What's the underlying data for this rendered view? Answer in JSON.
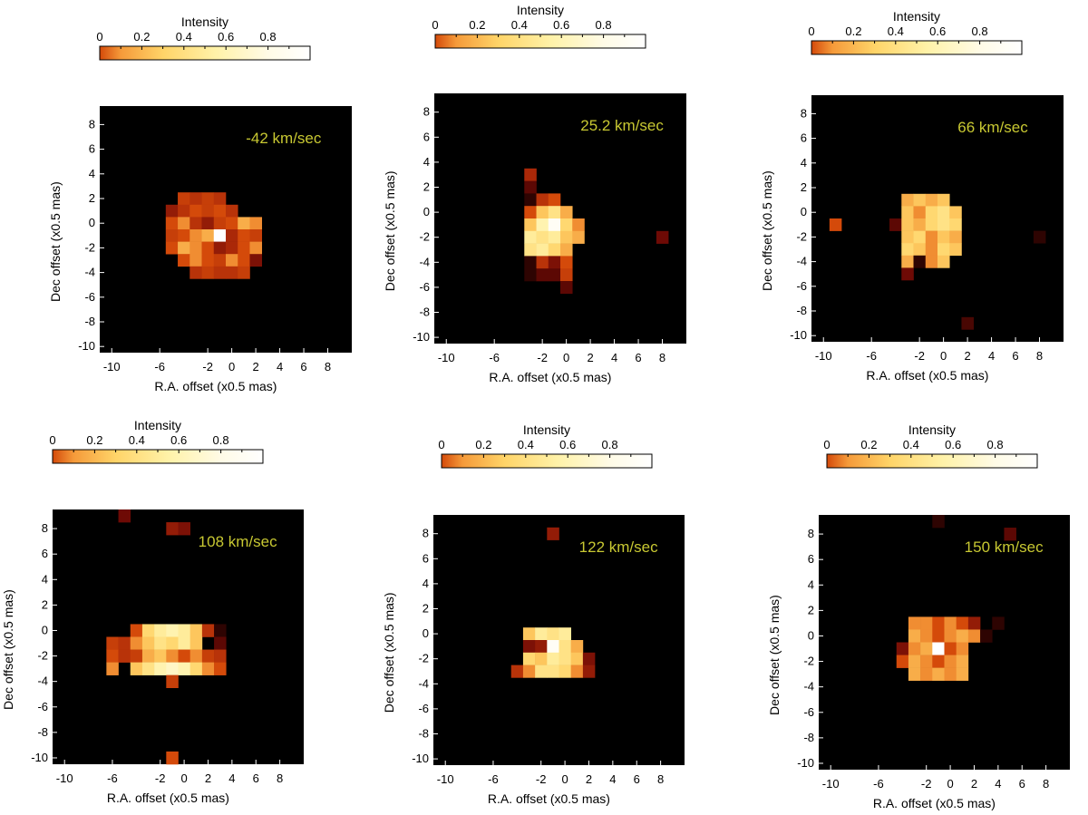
{
  "chart_data": [
    {
      "type": "heatmap",
      "velocity_label": "-42 km/sec",
      "colorbar_title": "Intensity",
      "colorbar_ticks": [
        "0",
        "0.2",
        "0.4",
        "0.6",
        "0.8"
      ],
      "xlabel": "R.A. offset (x0.5 mas)",
      "ylabel": "Dec offset (x0.5 mas)",
      "xticks": [
        "-10",
        "-6",
        "-2",
        "0",
        "2",
        "4",
        "6",
        "8"
      ],
      "xtick_values": [
        -10,
        -6,
        -2,
        0,
        2,
        4,
        6,
        8
      ],
      "yticks": [
        "8",
        "6",
        "4",
        "2",
        "0",
        "-2",
        "-4",
        "-6",
        "-8",
        "-10"
      ],
      "ytick_values": [
        8,
        6,
        4,
        2,
        0,
        -2,
        -4,
        -6,
        -8,
        -10
      ],
      "xlim": [
        -11,
        10
      ],
      "ylim": [
        -10.5,
        9.5
      ],
      "cells": [
        [
          -4,
          2,
          0.35
        ],
        [
          -3,
          2,
          0.3
        ],
        [
          -2,
          2,
          0.35
        ],
        [
          -1,
          2,
          0.3
        ],
        [
          -5,
          1,
          0.2
        ],
        [
          -4,
          1,
          0.3
        ],
        [
          -3,
          1,
          0.4
        ],
        [
          -2,
          1,
          0.35
        ],
        [
          -1,
          1,
          0.4
        ],
        [
          0,
          1,
          0.3
        ],
        [
          -5,
          0,
          0.4
        ],
        [
          -4,
          0,
          0.45
        ],
        [
          -3,
          0,
          0.3
        ],
        [
          -2,
          0,
          0.2
        ],
        [
          -1,
          0,
          0.35
        ],
        [
          0,
          0,
          0.4
        ],
        [
          1,
          0,
          0.5
        ],
        [
          2,
          0,
          0.45
        ],
        [
          -5,
          -1,
          0.35
        ],
        [
          -4,
          -1,
          0.4
        ],
        [
          -3,
          -1,
          0.45
        ],
        [
          -2,
          -1,
          0.5
        ],
        [
          -1,
          -1,
          1.0
        ],
        [
          0,
          -1,
          0.25
        ],
        [
          1,
          -1,
          0.4
        ],
        [
          2,
          -1,
          0.35
        ],
        [
          -5,
          -2,
          0.4
        ],
        [
          -4,
          -2,
          0.5
        ],
        [
          -3,
          -2,
          0.45
        ],
        [
          -2,
          -2,
          0.4
        ],
        [
          -1,
          -2,
          0.2
        ],
        [
          0,
          -2,
          0.25
        ],
        [
          1,
          -2,
          0.4
        ],
        [
          2,
          -2,
          0.45
        ],
        [
          -4,
          -3,
          0.4
        ],
        [
          -3,
          -3,
          0.45
        ],
        [
          -2,
          -3,
          0.4
        ],
        [
          -1,
          -3,
          0.35
        ],
        [
          0,
          -3,
          0.45
        ],
        [
          1,
          -3,
          0.4
        ],
        [
          2,
          -3,
          0.15
        ],
        [
          -3,
          -4,
          0.3
        ],
        [
          -2,
          -4,
          0.35
        ],
        [
          -1,
          -4,
          0.3
        ],
        [
          0,
          -4,
          0.3
        ],
        [
          1,
          -4,
          0.35
        ]
      ]
    },
    {
      "type": "heatmap",
      "velocity_label": "25.2 km/sec",
      "colorbar_title": "Intensity",
      "colorbar_ticks": [
        "0",
        "0.2",
        "0.4",
        "0.6",
        "0.8"
      ],
      "xlabel": "R.A. offset (x0.5 mas)",
      "ylabel": "Dec offset (x0.5 mas)",
      "xticks": [
        "-10",
        "-6",
        "-2",
        "0",
        "2",
        "4",
        "6",
        "8"
      ],
      "xtick_values": [
        -10,
        -6,
        -2,
        0,
        2,
        4,
        6,
        8
      ],
      "yticks": [
        "8",
        "6",
        "4",
        "2",
        "0",
        "-2",
        "-4",
        "-6",
        "-8",
        "-10"
      ],
      "yticks_note": "",
      "ytick_values": [
        8,
        6,
        4,
        2,
        0,
        -2,
        -4,
        -6,
        -8,
        -10
      ],
      "xlim": [
        -11,
        10
      ],
      "ylim": [
        -10.5,
        9.5
      ],
      "cells": [
        [
          -3,
          3,
          0.25
        ],
        [
          -3,
          2,
          0.1
        ],
        [
          -3,
          1,
          0.05
        ],
        [
          -2,
          1,
          0.3
        ],
        [
          -1,
          1,
          0.4
        ],
        [
          -3,
          0,
          0.4
        ],
        [
          -2,
          0,
          0.55
        ],
        [
          -1,
          0,
          0.65
        ],
        [
          0,
          0,
          0.5
        ],
        [
          -3,
          -1,
          0.55
        ],
        [
          -2,
          -1,
          0.75
        ],
        [
          -1,
          -1,
          0.95
        ],
        [
          0,
          -1,
          0.6
        ],
        [
          1,
          -1,
          0.45
        ],
        [
          -3,
          -2,
          0.7
        ],
        [
          -2,
          -2,
          0.65
        ],
        [
          -1,
          -2,
          0.7
        ],
        [
          0,
          -2,
          0.55
        ],
        [
          1,
          -2,
          0.5
        ],
        [
          -3,
          -3,
          0.65
        ],
        [
          -2,
          -3,
          0.7
        ],
        [
          -1,
          -3,
          0.6
        ],
        [
          0,
          -3,
          0.5
        ],
        [
          -3,
          -4,
          0.05
        ],
        [
          -2,
          -4,
          0.3
        ],
        [
          -1,
          -4,
          0.15
        ],
        [
          0,
          -4,
          0.4
        ],
        [
          -3,
          -5,
          0.05
        ],
        [
          -2,
          -5,
          0.1
        ],
        [
          -1,
          -5,
          0.1
        ],
        [
          0,
          -5,
          0.35
        ],
        [
          0,
          -6,
          0.1
        ],
        [
          8,
          -2,
          0.12
        ]
      ]
    },
    {
      "type": "heatmap",
      "velocity_label": "66 km/sec",
      "colorbar_title": "Intensity",
      "colorbar_ticks": [
        "0",
        "0.2",
        "0.4",
        "0.6",
        "0.8"
      ],
      "xlabel": "R.A. offset (x0.5 mas)",
      "ylabel": "Dec offset (x0.5 mas)",
      "xticks": [
        "-10",
        "-6",
        "-2",
        "0",
        "2",
        "4",
        "6",
        "8"
      ],
      "xtick_values": [
        -10,
        -6,
        -2,
        0,
        2,
        4,
        6,
        8
      ],
      "yticks": [
        "8",
        "6",
        "4",
        "2",
        "0",
        "-2",
        "-4",
        "-6",
        "-8",
        "-10"
      ],
      "ytick_values": [
        8,
        6,
        4,
        2,
        0,
        -2,
        -4,
        -6,
        -8,
        -10
      ],
      "xlim": [
        -11,
        10
      ],
      "ylim": [
        -10.5,
        9.5
      ],
      "cells": [
        [
          -3,
          1,
          0.5
        ],
        [
          -2,
          1,
          0.55
        ],
        [
          -1,
          1,
          0.5
        ],
        [
          0,
          1,
          0.55
        ],
        [
          -3,
          0,
          0.55
        ],
        [
          -2,
          0,
          0.45
        ],
        [
          -1,
          0,
          0.6
        ],
        [
          0,
          0,
          0.65
        ],
        [
          1,
          0,
          0.55
        ],
        [
          -4,
          -1,
          0.1
        ],
        [
          -3,
          -1,
          0.55
        ],
        [
          -2,
          -1,
          0.5
        ],
        [
          -1,
          -1,
          0.6
        ],
        [
          0,
          -1,
          0.65
        ],
        [
          1,
          -1,
          0.6
        ],
        [
          -3,
          -2,
          0.55
        ],
        [
          -2,
          -2,
          0.6
        ],
        [
          -1,
          -2,
          0.45
        ],
        [
          0,
          -2,
          0.55
        ],
        [
          1,
          -2,
          0.5
        ],
        [
          -3,
          -3,
          0.6
        ],
        [
          -2,
          -3,
          0.55
        ],
        [
          -1,
          -3,
          0.45
        ],
        [
          0,
          -3,
          0.6
        ],
        [
          1,
          -3,
          0.55
        ],
        [
          -3,
          -4,
          0.5
        ],
        [
          -2,
          -4,
          0.05
        ],
        [
          -1,
          -4,
          0.45
        ],
        [
          0,
          -4,
          0.55
        ],
        [
          -3,
          -5,
          0.12
        ],
        [
          -9,
          -1,
          0.4
        ],
        [
          8,
          -2,
          0.05
        ],
        [
          2,
          -9,
          0.08
        ]
      ]
    },
    {
      "type": "heatmap",
      "velocity_label": "108 km/sec",
      "colorbar_title": "Intensity",
      "colorbar_ticks": [
        "0",
        "0.2",
        "0.4",
        "0.6",
        "0.8"
      ],
      "xlabel": "R.A. offset (x0.5 mas)",
      "ylabel": "Dec offset (x0.5 mas)",
      "xticks": [
        "-10",
        "-6",
        "-2",
        "0",
        "2",
        "4",
        "6",
        "8"
      ],
      "xtick_values": [
        -10,
        -6,
        -2,
        0,
        2,
        4,
        6,
        8
      ],
      "yticks": [
        "8",
        "6",
        "4",
        "2",
        "0",
        "-2",
        "-4",
        "-6",
        "-8",
        "-10"
      ],
      "ytick_values": [
        8,
        6,
        4,
        2,
        0,
        -2,
        -4,
        -6,
        -8,
        -10
      ],
      "xlim": [
        -11,
        10
      ],
      "ylim": [
        -10.5,
        9.5
      ],
      "cells": [
        [
          -5,
          9,
          0.12
        ],
        [
          -1,
          8,
          0.2
        ],
        [
          0,
          8,
          0.15
        ],
        [
          -4,
          0,
          0.4
        ],
        [
          -3,
          0,
          0.6
        ],
        [
          -2,
          0,
          0.7
        ],
        [
          -1,
          0,
          0.75
        ],
        [
          0,
          0,
          0.7
        ],
        [
          1,
          0,
          0.55
        ],
        [
          2,
          0,
          0.3
        ],
        [
          3,
          0,
          0.05
        ],
        [
          -6,
          -1,
          0.35
        ],
        [
          -5,
          -1,
          0.3
        ],
        [
          -4,
          -1,
          0.45
        ],
        [
          -3,
          -1,
          0.55
        ],
        [
          -2,
          -1,
          0.65
        ],
        [
          -1,
          -1,
          0.6
        ],
        [
          0,
          -1,
          0.7
        ],
        [
          1,
          -1,
          0.55
        ],
        [
          3,
          -1,
          0.1
        ],
        [
          -6,
          -2,
          0.4
        ],
        [
          -5,
          -2,
          0.3
        ],
        [
          -4,
          -2,
          0.35
        ],
        [
          -3,
          -2,
          0.5
        ],
        [
          -2,
          -2,
          0.55
        ],
        [
          -1,
          -2,
          0.45
        ],
        [
          0,
          -2,
          0.4
        ],
        [
          1,
          -2,
          0.45
        ],
        [
          2,
          -2,
          0.35
        ],
        [
          3,
          -2,
          0.3
        ],
        [
          -6,
          -3,
          0.45
        ],
        [
          -4,
          -3,
          0.55
        ],
        [
          -3,
          -3,
          0.65
        ],
        [
          -2,
          -3,
          0.75
        ],
        [
          -1,
          -3,
          0.8
        ],
        [
          0,
          -3,
          0.75
        ],
        [
          1,
          -3,
          0.6
        ],
        [
          2,
          -3,
          0.45
        ],
        [
          3,
          -3,
          0.4
        ],
        [
          -1,
          -4,
          0.35
        ],
        [
          -1,
          -10,
          0.4
        ]
      ]
    },
    {
      "type": "heatmap",
      "velocity_label": "122 km/sec",
      "colorbar_title": "Intensity",
      "colorbar_ticks": [
        "0",
        "0.2",
        "0.4",
        "0.6",
        "0.8"
      ],
      "xlabel": "R.A. offset (x0.5 mas)",
      "ylabel": "Dec offset (x0.5 mas)",
      "xticks": [
        "-10",
        "-6",
        "-2",
        "0",
        "2",
        "4",
        "6",
        "8"
      ],
      "xtick_values": [
        -10,
        -6,
        -2,
        0,
        2,
        4,
        6,
        8
      ],
      "yticks": [
        "8",
        "6",
        "4",
        "2",
        "0",
        "-2",
        "-4",
        "-6",
        "-8",
        "-10"
      ],
      "ytick_values": [
        8,
        6,
        4,
        2,
        0,
        -2,
        -4,
        -6,
        -8,
        -10
      ],
      "xlim": [
        -11,
        10
      ],
      "ylim": [
        -10.5,
        9.5
      ],
      "cells": [
        [
          -1,
          8,
          0.2
        ],
        [
          -3,
          0,
          0.55
        ],
        [
          -2,
          0,
          0.7
        ],
        [
          -1,
          0,
          0.65
        ],
        [
          0,
          0,
          0.7
        ],
        [
          -3,
          -1,
          0.15
        ],
        [
          -2,
          -1,
          0.2
        ],
        [
          -1,
          -1,
          0.95
        ],
        [
          0,
          -1,
          0.65
        ],
        [
          1,
          -1,
          0.5
        ],
        [
          -3,
          -2,
          0.6
        ],
        [
          -2,
          -2,
          0.55
        ],
        [
          -1,
          -2,
          0.7
        ],
        [
          0,
          -2,
          0.65
        ],
        [
          1,
          -2,
          0.55
        ],
        [
          2,
          -2,
          0.15
        ],
        [
          -4,
          -3,
          0.3
        ],
        [
          -3,
          -3,
          0.45
        ],
        [
          -2,
          -3,
          0.65
        ],
        [
          -1,
          -3,
          0.65
        ],
        [
          0,
          -3,
          0.6
        ],
        [
          1,
          -3,
          0.45
        ],
        [
          2,
          -3,
          0.2
        ]
      ]
    },
    {
      "type": "heatmap",
      "velocity_label": "150 km/sec",
      "colorbar_title": "Intensity",
      "colorbar_ticks": [
        "0",
        "0.2",
        "0.4",
        "0.6",
        "0.8"
      ],
      "xlabel": "R.A. offset (x0.5 mas)",
      "ylabel": "Dec offset (x0.5 mas)",
      "xticks": [
        "-10",
        "-6",
        "-2",
        "0",
        "2",
        "4",
        "6",
        "8"
      ],
      "xtick_values": [
        -10,
        -6,
        -2,
        0,
        2,
        4,
        6,
        8
      ],
      "yticks": [
        "8",
        "6",
        "4",
        "2",
        "0",
        "-2",
        "-4",
        "-6",
        "-8",
        "-10"
      ],
      "ytick_values": [
        8,
        6,
        4,
        2,
        0,
        -2,
        -4,
        -6,
        -8,
        -10
      ],
      "xlim": [
        -11,
        10
      ],
      "ylim": [
        -10.5,
        9.5
      ],
      "cells": [
        [
          -1,
          9,
          0.05
        ],
        [
          5,
          8,
          0.1
        ],
        [
          -3,
          1,
          0.45
        ],
        [
          -2,
          1,
          0.45
        ],
        [
          -1,
          1,
          0.4
        ],
        [
          0,
          1,
          0.45
        ],
        [
          1,
          1,
          0.4
        ],
        [
          2,
          1,
          0.2
        ],
        [
          4,
          1,
          0.05
        ],
        [
          -3,
          0,
          0.5
        ],
        [
          -2,
          0,
          0.45
        ],
        [
          -1,
          0,
          0.4
        ],
        [
          0,
          0,
          0.45
        ],
        [
          1,
          0,
          0.5
        ],
        [
          2,
          0,
          0.45
        ],
        [
          3,
          0,
          0.05
        ],
        [
          -4,
          -1,
          0.15
        ],
        [
          -3,
          -1,
          0.45
        ],
        [
          -2,
          -1,
          0.5
        ],
        [
          -1,
          -1,
          1.0
        ],
        [
          0,
          -1,
          0.4
        ],
        [
          1,
          -1,
          0.45
        ],
        [
          -4,
          -2,
          0.4
        ],
        [
          -3,
          -2,
          0.5
        ],
        [
          -2,
          -2,
          0.45
        ],
        [
          -1,
          -2,
          0.4
        ],
        [
          0,
          -2,
          0.45
        ],
        [
          1,
          -2,
          0.5
        ],
        [
          -3,
          -3,
          0.5
        ],
        [
          -2,
          -3,
          0.45
        ],
        [
          -1,
          -3,
          0.5
        ],
        [
          0,
          -3,
          0.45
        ],
        [
          1,
          -3,
          0.5
        ]
      ]
    }
  ]
}
